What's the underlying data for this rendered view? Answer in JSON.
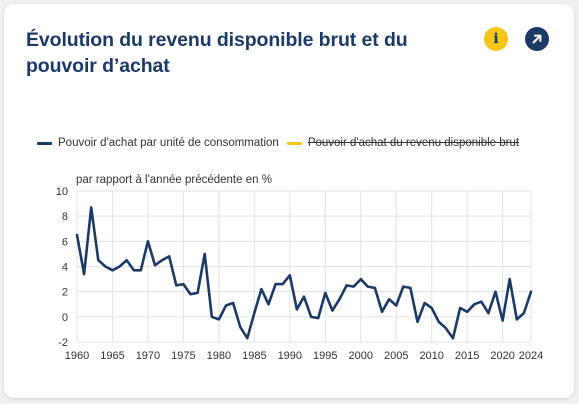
{
  "card": {
    "title": "Évolution du revenu disponible brut et du pouvoir d’achat",
    "info_icon": "info-icon",
    "expand_icon": "expand-arrow-icon"
  },
  "colors": {
    "title": "#1b3a66",
    "series_1": "#1b3a66",
    "series_2": "#f5c518",
    "info_button": "#f5c518",
    "expand_button": "#1b3a66"
  },
  "chart_data": {
    "type": "line",
    "subtitle": "par rapport à l'année précédente en %",
    "ylim": [
      -2,
      10
    ],
    "yticks": [
      -2,
      0,
      2,
      4,
      6,
      8,
      10
    ],
    "xlim": [
      1960,
      2024
    ],
    "xticks": [
      1960,
      1965,
      1970,
      1975,
      1980,
      1985,
      1990,
      1995,
      2000,
      2005,
      2010,
      2015,
      2020,
      2024
    ],
    "grid": true,
    "legend_position": "top-left",
    "x": [
      1960,
      1961,
      1962,
      1963,
      1964,
      1965,
      1966,
      1967,
      1968,
      1969,
      1970,
      1971,
      1972,
      1973,
      1974,
      1975,
      1976,
      1977,
      1978,
      1979,
      1980,
      1981,
      1982,
      1983,
      1984,
      1985,
      1986,
      1987,
      1988,
      1989,
      1990,
      1991,
      1992,
      1993,
      1994,
      1995,
      1996,
      1997,
      1998,
      1999,
      2000,
      2001,
      2002,
      2003,
      2004,
      2005,
      2006,
      2007,
      2008,
      2009,
      2010,
      2011,
      2012,
      2013,
      2014,
      2015,
      2016,
      2017,
      2018,
      2019,
      2020,
      2021,
      2022,
      2023,
      2024
    ],
    "series": [
      {
        "name": "Pouvoir d'achat par unité de consommation",
        "visible": true,
        "values": [
          6.5,
          3.4,
          8.7,
          4.5,
          4.0,
          3.7,
          4.0,
          4.5,
          3.7,
          3.7,
          6.0,
          4.1,
          4.5,
          4.8,
          2.5,
          2.6,
          1.8,
          1.9,
          5.0,
          0.0,
          -0.2,
          0.9,
          1.1,
          -0.8,
          -1.7,
          0.3,
          2.2,
          1.0,
          2.6,
          2.6,
          3.3,
          0.6,
          1.6,
          0.0,
          -0.1,
          1.9,
          0.5,
          1.4,
          2.5,
          2.4,
          3.0,
          2.4,
          2.3,
          0.4,
          1.4,
          0.9,
          2.4,
          2.3,
          -0.4,
          1.1,
          0.7,
          -0.4,
          -0.9,
          -1.7,
          0.7,
          0.4,
          1.0,
          1.2,
          0.3,
          2.0,
          -0.3,
          3.0,
          -0.2,
          0.3,
          2.0
        ]
      },
      {
        "name": "Pouvoir d'achat du revenu disponible brut",
        "visible": false
      }
    ]
  }
}
